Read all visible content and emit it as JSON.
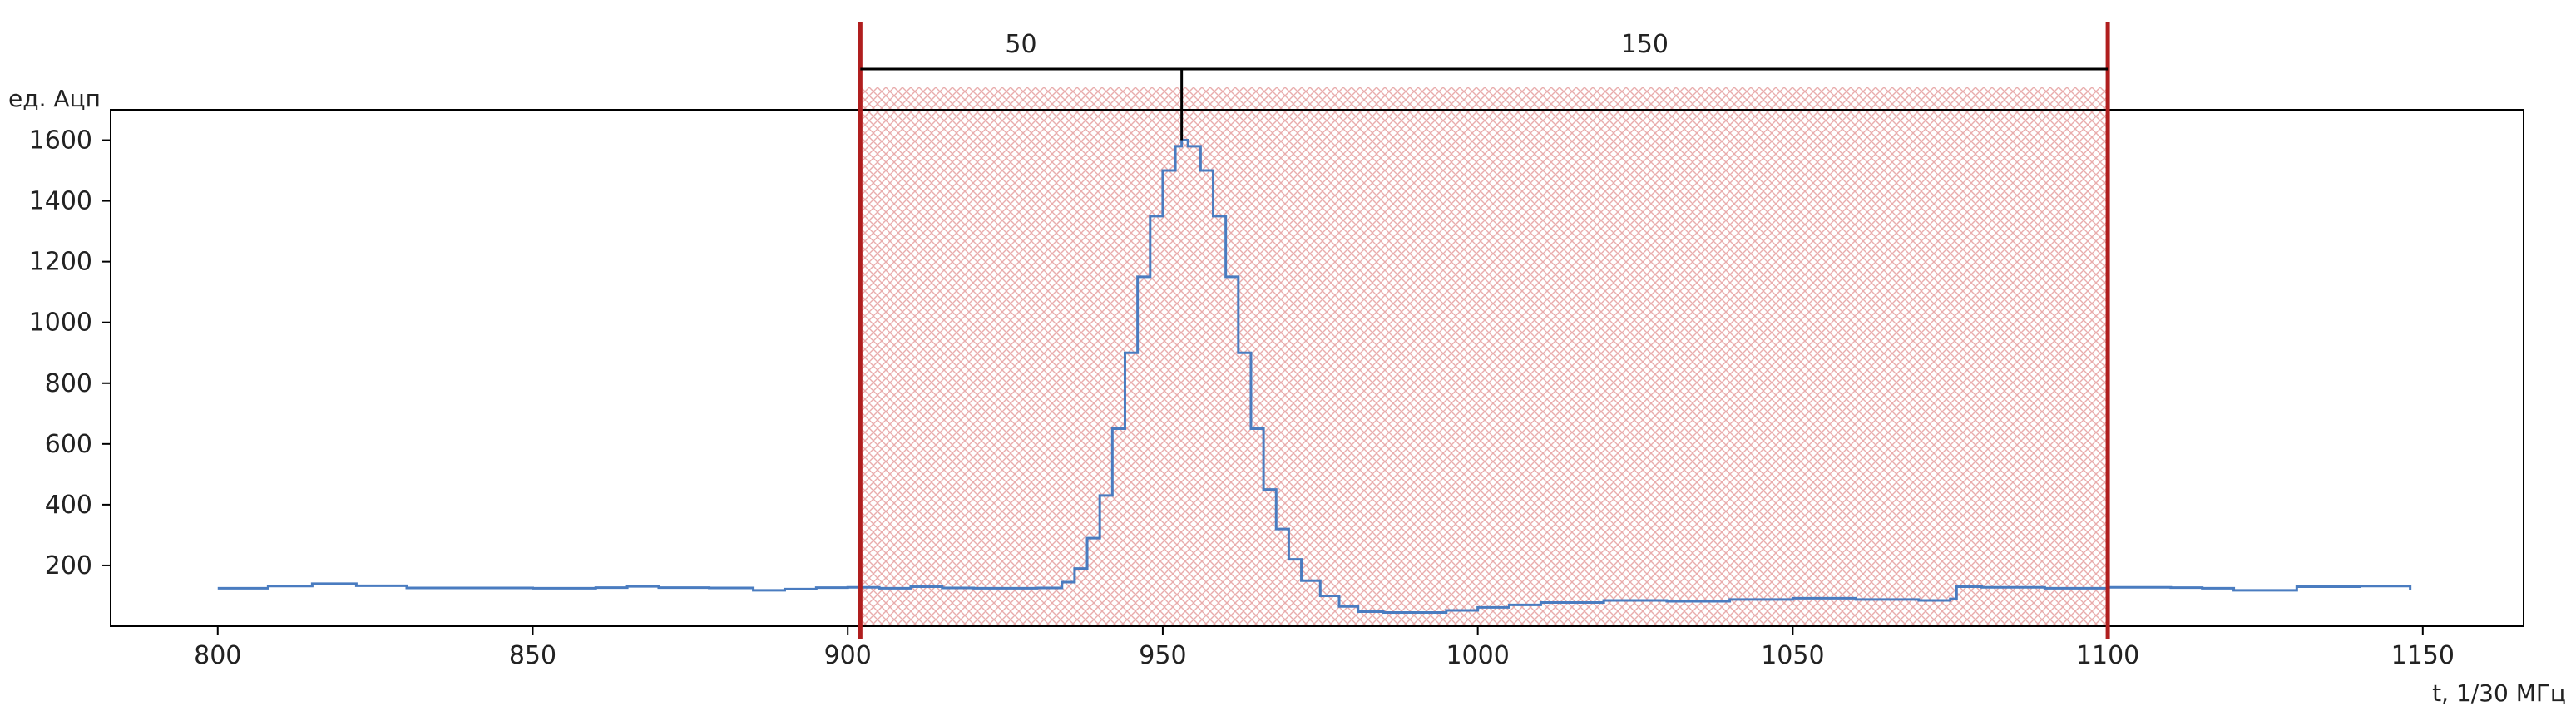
{
  "chart_data": {
    "type": "line",
    "title": "",
    "xlabel": "t, 1/30 МГц",
    "ylabel": "ед. Ацп",
    "xlim": [
      783,
      1166
    ],
    "ylim": [
      0,
      1700
    ],
    "xticks": [
      800,
      850,
      900,
      950,
      1000,
      1050,
      1100,
      1150
    ],
    "yticks": [
      200,
      400,
      600,
      800,
      1000,
      1200,
      1400,
      1600
    ],
    "grid": false,
    "series_color": "#4a7cc0",
    "series": [
      {
        "values_x": [
          800,
          808,
          815,
          822,
          830,
          840,
          850,
          860,
          865,
          870,
          878,
          885,
          890,
          895,
          900,
          905,
          910,
          915,
          920,
          925,
          930,
          934,
          936,
          938,
          940,
          942,
          944,
          946,
          948,
          950,
          952,
          953,
          954,
          956,
          958,
          960,
          962,
          964,
          966,
          968,
          970,
          972,
          975,
          978,
          981,
          985,
          990,
          995,
          1000,
          1005,
          1010,
          1020,
          1030,
          1040,
          1050,
          1060,
          1070,
          1075,
          1076,
          1080,
          1090,
          1100,
          1110,
          1115,
          1120,
          1130,
          1140,
          1148
        ],
        "values_y": [
          125,
          132,
          140,
          133,
          126,
          126,
          125,
          127,
          131,
          127,
          126,
          118,
          122,
          127,
          128,
          125,
          130,
          126,
          125,
          125,
          126,
          145,
          190,
          290,
          430,
          650,
          900,
          1150,
          1350,
          1500,
          1580,
          1600,
          1580,
          1500,
          1350,
          1150,
          900,
          650,
          450,
          320,
          220,
          150,
          100,
          65,
          48,
          45,
          45,
          52,
          62,
          70,
          78,
          85,
          82,
          88,
          92,
          88,
          85,
          90,
          130,
          128,
          125,
          128,
          127,
          125,
          118,
          130,
          132,
          120
        ]
      }
    ],
    "shaded_region": {
      "x": [
        902,
        1100
      ],
      "color": "#ec9a9a",
      "boundary_color": "#b01e1e"
    },
    "brackets": [
      {
        "label": "50",
        "x": [
          902,
          953
        ]
      },
      {
        "label": "150",
        "x": [
          953,
          1100
        ]
      }
    ]
  }
}
